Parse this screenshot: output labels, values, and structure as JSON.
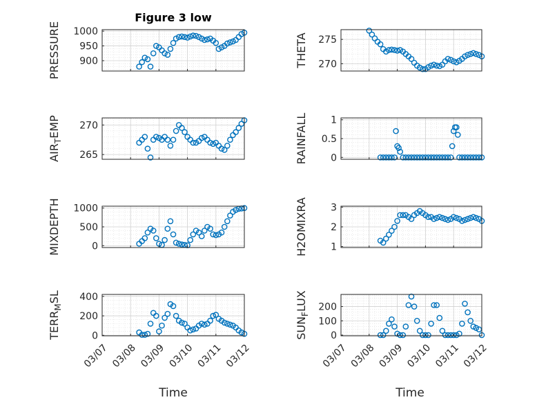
{
  "figure": {
    "title": "Figure 3 low",
    "xlabel": "Time"
  },
  "colors": {
    "marker": "#0072BD",
    "axis": "#262626",
    "grid": "#dcdcdc",
    "background": "#ffffff"
  },
  "chart_data": [
    {
      "type": "scatter",
      "ylabel": "PRESSURE",
      "xlim": [
        "03/07",
        "03/12"
      ],
      "yticks": [
        900,
        950,
        1000
      ],
      "ylim": [
        865,
        1005
      ],
      "x": [
        1.3,
        1.4,
        1.5,
        1.6,
        1.7,
        1.8,
        1.9,
        2.0,
        2.1,
        2.2,
        2.3,
        2.4,
        2.5,
        2.6,
        2.7,
        2.8,
        2.9,
        3.0,
        3.1,
        3.2,
        3.3,
        3.4,
        3.5,
        3.6,
        3.7,
        3.8,
        3.9,
        4.0,
        4.1,
        4.2,
        4.3,
        4.4,
        4.5,
        4.6,
        4.7,
        4.8,
        4.9,
        5.0
      ],
      "y": [
        880,
        895,
        910,
        905,
        880,
        925,
        950,
        945,
        935,
        925,
        920,
        940,
        960,
        975,
        980,
        982,
        980,
        978,
        982,
        985,
        984,
        980,
        975,
        970,
        972,
        975,
        968,
        960,
        940,
        945,
        950,
        958,
        962,
        965,
        970,
        980,
        990,
        995
      ]
    },
    {
      "type": "scatter",
      "ylabel": "THETA",
      "xlim": [
        "03/07",
        "03/12"
      ],
      "yticks": [
        270,
        275
      ],
      "ylim": [
        268.5,
        277
      ],
      "x": [
        1.0,
        1.1,
        1.2,
        1.3,
        1.4,
        1.5,
        1.6,
        1.7,
        1.8,
        1.9,
        2.0,
        2.1,
        2.2,
        2.3,
        2.4,
        2.5,
        2.6,
        2.7,
        2.8,
        2.9,
        3.0,
        3.1,
        3.2,
        3.3,
        3.4,
        3.5,
        3.6,
        3.7,
        3.8,
        3.9,
        4.0,
        4.1,
        4.2,
        4.3,
        4.4,
        4.5,
        4.6,
        4.7,
        4.8,
        4.9,
        5.0
      ],
      "y": [
        276.8,
        276.0,
        275.2,
        274.5,
        274.0,
        273.0,
        272.5,
        272.8,
        272.9,
        272.8,
        272.7,
        272.8,
        272.5,
        272.0,
        271.5,
        271.0,
        270.2,
        269.6,
        269.2,
        268.9,
        268.9,
        269.3,
        269.6,
        269.8,
        269.6,
        269.5,
        269.8,
        270.5,
        271.0,
        270.8,
        270.5,
        270.3,
        270.6,
        271.0,
        271.5,
        271.8,
        272.0,
        272.2,
        272.0,
        271.8,
        271.5
      ]
    },
    {
      "type": "scatter",
      "ylabel": "AIR_TEMP",
      "xlim": [
        "03/07",
        "03/12"
      ],
      "yticks": [
        265,
        270
      ],
      "ylim": [
        264.2,
        271.2
      ],
      "x": [
        1.3,
        1.4,
        1.5,
        1.6,
        1.7,
        1.8,
        1.9,
        2.0,
        2.1,
        2.2,
        2.3,
        2.4,
        2.5,
        2.6,
        2.7,
        2.8,
        2.9,
        3.0,
        3.1,
        3.2,
        3.3,
        3.4,
        3.5,
        3.6,
        3.7,
        3.8,
        3.9,
        4.0,
        4.1,
        4.2,
        4.3,
        4.4,
        4.5,
        4.6,
        4.7,
        4.8,
        4.9,
        5.0
      ],
      "y": [
        267.0,
        267.5,
        268.0,
        266.0,
        264.5,
        267.5,
        268.0,
        267.8,
        267.5,
        268.0,
        267.5,
        266.5,
        267.5,
        269.0,
        270.0,
        269.5,
        268.8,
        268.0,
        267.5,
        267.0,
        267.0,
        267.3,
        267.8,
        268.0,
        267.5,
        267.0,
        266.8,
        267.0,
        266.5,
        266.0,
        265.8,
        266.5,
        267.5,
        268.3,
        268.8,
        269.5,
        270.2,
        270.8
      ]
    },
    {
      "type": "scatter",
      "ylabel": "RAINFALL",
      "xlim": [
        "03/07",
        "03/12"
      ],
      "yticks": [
        0,
        0.5,
        1
      ],
      "ylim": [
        -0.05,
        1.05
      ],
      "x": [
        1.4,
        1.5,
        1.6,
        1.7,
        1.8,
        1.9,
        1.95,
        2.0,
        2.05,
        2.1,
        2.2,
        2.3,
        2.4,
        2.5,
        2.6,
        2.7,
        2.8,
        2.9,
        3.0,
        3.1,
        3.2,
        3.3,
        3.4,
        3.5,
        3.6,
        3.7,
        3.8,
        3.9,
        3.95,
        4.0,
        4.05,
        4.1,
        4.15,
        4.2,
        4.3,
        4.4,
        4.5,
        4.6,
        4.7,
        4.8,
        4.9,
        5.0
      ],
      "y": [
        0,
        0,
        0,
        0,
        0,
        0,
        0.7,
        0.3,
        0.25,
        0.15,
        0,
        0,
        0,
        0,
        0,
        0,
        0,
        0,
        0,
        0,
        0,
        0,
        0,
        0,
        0,
        0,
        0,
        0,
        0.3,
        0.7,
        0.8,
        0.8,
        0.6,
        0,
        0,
        0,
        0,
        0,
        0,
        0,
        0,
        0
      ]
    },
    {
      "type": "scatter",
      "ylabel": "MIXDEPTH",
      "xlim": [
        "03/07",
        "03/12"
      ],
      "yticks": [
        0,
        500,
        1000
      ],
      "ylim": [
        -50,
        1050
      ],
      "x": [
        1.3,
        1.4,
        1.5,
        1.6,
        1.7,
        1.8,
        1.9,
        2.0,
        2.1,
        2.2,
        2.3,
        2.4,
        2.5,
        2.6,
        2.7,
        2.8,
        2.9,
        3.0,
        3.1,
        3.2,
        3.3,
        3.4,
        3.5,
        3.6,
        3.7,
        3.8,
        3.9,
        4.0,
        4.1,
        4.2,
        4.3,
        4.4,
        4.5,
        4.6,
        4.7,
        4.8,
        4.9,
        5.0
      ],
      "y": [
        50,
        120,
        200,
        350,
        450,
        400,
        200,
        50,
        20,
        150,
        450,
        650,
        300,
        80,
        50,
        30,
        20,
        10,
        150,
        300,
        400,
        350,
        250,
        400,
        500,
        450,
        300,
        280,
        300,
        350,
        500,
        650,
        800,
        900,
        950,
        980,
        990,
        1000
      ]
    },
    {
      "type": "scatter",
      "ylabel": "H2OMIXRA",
      "xlim": [
        "03/07",
        "03/12"
      ],
      "yticks": [
        1,
        2,
        3
      ],
      "ylim": [
        0.95,
        3.05
      ],
      "x": [
        1.4,
        1.5,
        1.6,
        1.7,
        1.8,
        1.9,
        2.0,
        2.1,
        2.2,
        2.3,
        2.4,
        2.5,
        2.6,
        2.7,
        2.8,
        2.9,
        3.0,
        3.1,
        3.2,
        3.3,
        3.4,
        3.5,
        3.6,
        3.7,
        3.8,
        3.9,
        4.0,
        4.1,
        4.2,
        4.3,
        4.4,
        4.5,
        4.6,
        4.7,
        4.8,
        4.9,
        5.0
      ],
      "y": [
        1.3,
        1.2,
        1.4,
        1.6,
        1.8,
        2.0,
        2.3,
        2.6,
        2.6,
        2.6,
        2.5,
        2.4,
        2.6,
        2.7,
        2.8,
        2.7,
        2.6,
        2.5,
        2.5,
        2.4,
        2.45,
        2.5,
        2.45,
        2.4,
        2.35,
        2.4,
        2.5,
        2.45,
        2.4,
        2.3,
        2.35,
        2.4,
        2.45,
        2.5,
        2.45,
        2.4,
        2.3
      ]
    },
    {
      "type": "scatter",
      "ylabel": "TERR_MSL",
      "xlim": [
        "03/07",
        "03/12"
      ],
      "yticks": [
        0,
        200,
        400
      ],
      "ylim": [
        -5,
        420
      ],
      "x": [
        1.3,
        1.4,
        1.5,
        1.6,
        1.7,
        1.8,
        1.9,
        2.0,
        2.1,
        2.2,
        2.3,
        2.4,
        2.5,
        2.6,
        2.7,
        2.8,
        2.9,
        3.0,
        3.1,
        3.2,
        3.3,
        3.4,
        3.5,
        3.6,
        3.7,
        3.8,
        3.9,
        4.0,
        4.1,
        4.2,
        4.3,
        4.4,
        4.5,
        4.6,
        4.7,
        4.8,
        4.9,
        5.0
      ],
      "y": [
        30,
        5,
        5,
        15,
        120,
        230,
        200,
        40,
        100,
        180,
        220,
        320,
        300,
        200,
        150,
        130,
        120,
        80,
        50,
        60,
        70,
        100,
        120,
        110,
        120,
        150,
        200,
        210,
        170,
        150,
        130,
        120,
        110,
        100,
        80,
        50,
        30,
        15
      ]
    },
    {
      "type": "scatter",
      "ylabel": "SUN_FLUX",
      "xlim": [
        "03/07",
        "03/12"
      ],
      "yticks": [
        0,
        100,
        200
      ],
      "ylim": [
        -5,
        285
      ],
      "x": [
        1.4,
        1.5,
        1.6,
        1.7,
        1.8,
        1.9,
        2.0,
        2.1,
        2.2,
        2.3,
        2.4,
        2.5,
        2.6,
        2.7,
        2.8,
        2.9,
        3.0,
        3.1,
        3.2,
        3.3,
        3.4,
        3.5,
        3.6,
        3.7,
        3.8,
        3.9,
        4.0,
        4.1,
        4.2,
        4.3,
        4.4,
        4.5,
        4.6,
        4.7,
        4.8,
        4.9,
        5.0
      ],
      "y": [
        0,
        0,
        30,
        80,
        110,
        60,
        10,
        0,
        0,
        60,
        210,
        270,
        200,
        100,
        30,
        0,
        0,
        0,
        80,
        210,
        210,
        120,
        30,
        0,
        0,
        0,
        0,
        0,
        10,
        80,
        220,
        160,
        100,
        60,
        50,
        40,
        0
      ]
    }
  ]
}
